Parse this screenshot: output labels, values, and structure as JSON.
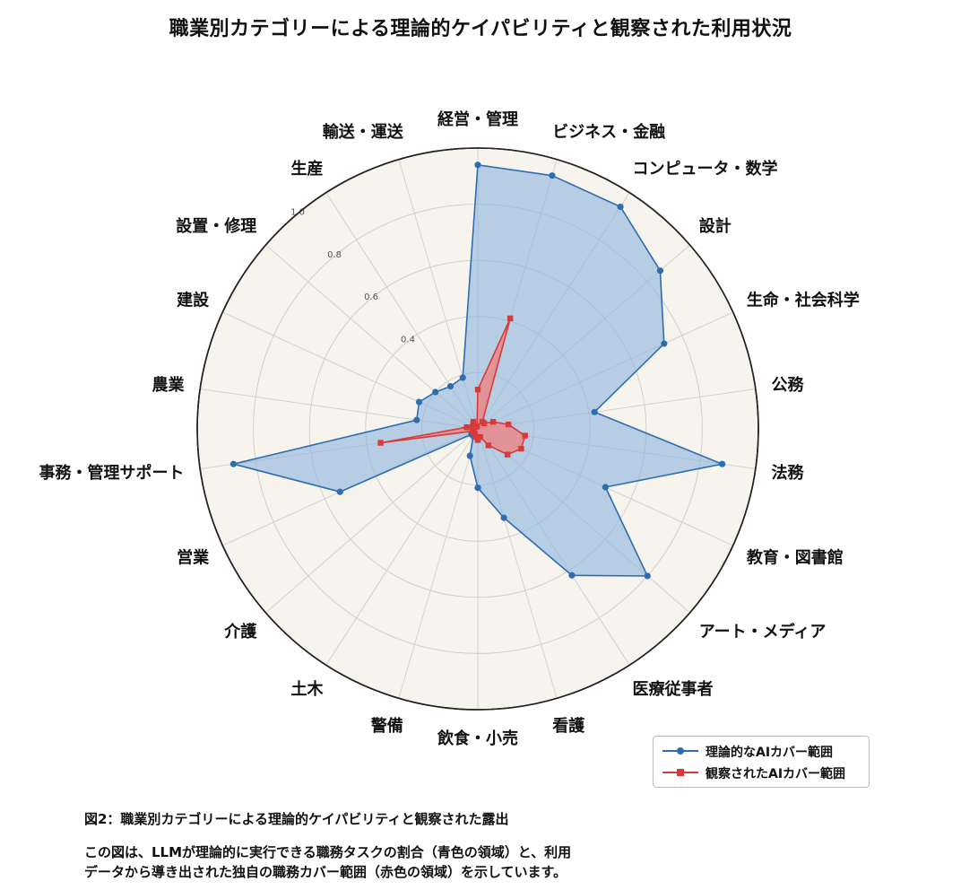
{
  "chart_data": {
    "type": "radar",
    "title": "職業別カテゴリーによる理論的ケイパビリティと観察された利用状況",
    "categories": [
      "経営・管理",
      "ビジネス・金融",
      "コンピュータ・数学",
      "設計",
      "生命・社会科学",
      "公務",
      "法務",
      "教育・図書館",
      "アート・メディア",
      "医療従事者",
      "看護",
      "飲食・小売",
      "警備",
      "土木",
      "介護",
      "営業",
      "事務・管理サポート",
      "農業",
      "建設",
      "設置・修理",
      "生産",
      "輸送・運送"
    ],
    "series": [
      {
        "name": "理論的なAIカバー範囲",
        "color": "#2e6db0",
        "fill": "#8fb5df",
        "values": [
          0.94,
          0.94,
          0.94,
          0.86,
          0.73,
          0.42,
          0.88,
          0.5,
          0.8,
          0.62,
          0.33,
          0.21,
          0.1,
          0.03,
          0.03,
          0.54,
          0.88,
          0.22,
          0.23,
          0.2,
          0.18,
          0.19
        ]
      },
      {
        "name": "観察されたAIカバー範囲",
        "color": "#d73a3a",
        "fill": "#f07f7f",
        "values": [
          0.14,
          0.41,
          0.03,
          0.03,
          0.06,
          0.11,
          0.17,
          0.17,
          0.14,
          0.07,
          0.03,
          0.04,
          0.03,
          0.02,
          0.02,
          0.02,
          0.35,
          0.04,
          0.02,
          0.01,
          0.03,
          0.01
        ]
      }
    ],
    "rlim": [
      0,
      1.0
    ],
    "r_ticks": [
      "0.4",
      "0.6",
      "0.8",
      "1.0"
    ],
    "grid": true,
    "legend_position": "bottom-right"
  },
  "legend": {
    "theoretical": "理論的なAIカバー範囲",
    "observed": "観察されたAIカバー範囲"
  },
  "caption": {
    "title": "図2：職業別カテゴリーによる理論的ケイパビリティと観察された露出",
    "line1": "この図は、LLMが理論的に実行できる職務タスクの割合（青色の領域）と、利用",
    "line2": "データから導き出された独自の職務カバー範囲（赤色の領域）を示しています。"
  }
}
